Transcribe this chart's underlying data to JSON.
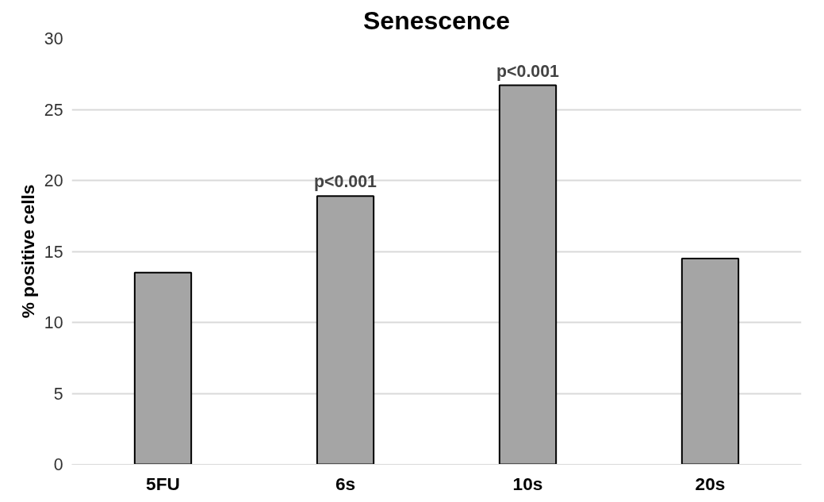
{
  "chart_data": {
    "type": "bar",
    "title": "Senescence",
    "ylabel": "% positive cells",
    "categories": [
      "5FU",
      "6s",
      "10s",
      "20s"
    ],
    "values": [
      13.5,
      18.9,
      26.7,
      14.5
    ],
    "color": "#a5a5a5",
    "ylim": [
      0,
      30
    ],
    "yticks": [
      0,
      5,
      10,
      15,
      20,
      25,
      30
    ],
    "grid": "y",
    "annotations": [
      {
        "text": "p<0.001",
        "x": "6s",
        "y": 18.9
      },
      {
        "text": "p<0.001",
        "x": "10s",
        "y": 26.7
      }
    ]
  }
}
